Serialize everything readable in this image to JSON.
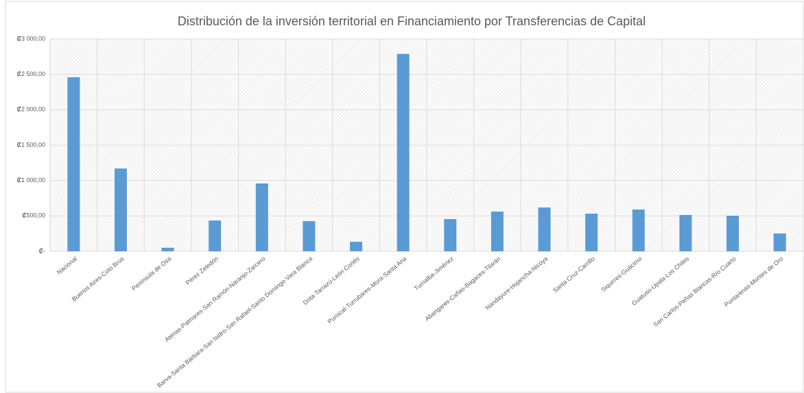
{
  "chart_data": {
    "type": "bar",
    "title": "Distribución de la inversión territorial en Financiamiento por Transferencias de Capital",
    "categories": [
      "Nacional",
      "Buenos Aires-Coto Brus",
      "Península de Osa",
      "Pérez Zeledón",
      "Atenas-Palmares-San Ramón-Naranjo-Zarcero",
      "Barva-Santa Bárbara-San Isidro-San Rafael-Santo Domingo-Vara Blanca",
      "Dota-Tarrazú-León Cortés",
      "Puriscal-Turrubares-Mora-Santa Ana",
      "Turrialba-Jiménez",
      "Abangares-Cañas-Bagaces-Tilarán",
      "Nandayure-Hojancha-Nicoya",
      "Santa Cruz-Carrillo",
      "Siquirres-Guácimo",
      "Guatuso-Upala-Los Chiles",
      "San Carlos-Peñas Blancas-Río Cuarto",
      "Puntarenas-Montes de Oro"
    ],
    "values": [
      2460,
      1170,
      50,
      435,
      958,
      426,
      135,
      2790,
      455,
      561,
      619,
      532,
      590,
      513,
      503,
      252
    ],
    "color": "#5b9bd5",
    "ylim": [
      0,
      3000
    ],
    "yticks": [
      {
        "value": 0,
        "label": "₡-"
      },
      {
        "value": 500,
        "label": "₡500,00"
      },
      {
        "value": 1000,
        "label": "₡1 000,00"
      },
      {
        "value": 1500,
        "label": "₡1 500,00"
      },
      {
        "value": 2000,
        "label": "₡2 000,00"
      },
      {
        "value": 2500,
        "label": "₡2 500,00"
      },
      {
        "value": 3000,
        "label": "₡3 000,00"
      }
    ],
    "grid": true
  }
}
